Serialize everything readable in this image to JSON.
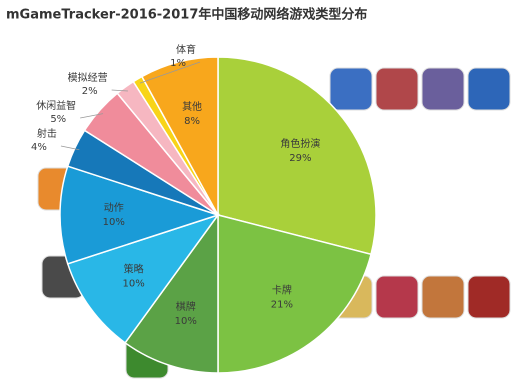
{
  "chart_data": {
    "type": "pie",
    "title": "mGameTracker-2016-2017年中国移动网络游戏类型分布",
    "categories": [
      "角色扮演",
      "卡牌",
      "棋牌",
      "策略",
      "动作",
      "射击",
      "休闲益智",
      "模拟经营",
      "体育",
      "其他"
    ],
    "values": [
      29,
      21,
      10,
      10,
      10,
      4,
      5,
      2,
      1,
      8
    ],
    "value_labels": [
      "29%",
      "21%",
      "10%",
      "10%",
      "10%",
      "4%",
      "5%",
      "2%",
      "1%",
      "8%"
    ],
    "colors": [
      "#a9d03a",
      "#7cc243",
      "#5ba246",
      "#29b7e7",
      "#1a9bd7",
      "#1678b9",
      "#f08c9b",
      "#f6b7c1",
      "#f8d418",
      "#f8a71c"
    ]
  }
}
